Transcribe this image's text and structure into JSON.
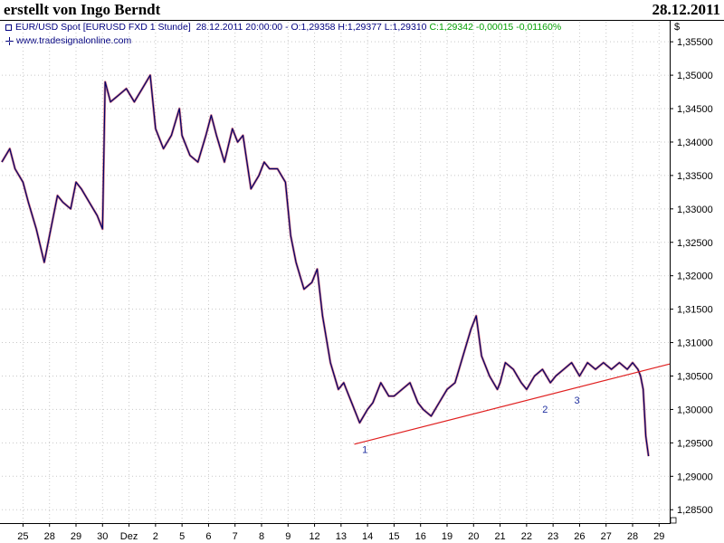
{
  "header": {
    "title": "erstellt von Ingo Berndt",
    "date": "28.12.2011"
  },
  "info": {
    "instrument": "EUR/USD Spot [EURUSD FXD  1 Stunde]",
    "timestamp": "28.12.2011 20:00:00",
    "ohlc": "- O:1,29358 H:1,29377 L:1,29310",
    "change": "C:1,29342 -0,00015 -0,01160%",
    "website": "www.tradesignalonline.com"
  },
  "chart_data": {
    "type": "line",
    "yunit": "$",
    "ylim": [
      1.283,
      1.358
    ],
    "ytick_labels": [
      "1,35500",
      "1,35000",
      "1,34500",
      "1,34000",
      "1,33500",
      "1,33000",
      "1,32500",
      "1,32000",
      "1,31500",
      "1,31000",
      "1,30500",
      "1,30000",
      "1,29500",
      "1,29000",
      "1,28500"
    ],
    "ytick_values": [
      1.355,
      1.35,
      1.345,
      1.34,
      1.335,
      1.33,
      1.325,
      1.32,
      1.315,
      1.31,
      1.305,
      1.3,
      1.295,
      1.29,
      1.285
    ],
    "xtick_labels": [
      "25",
      "28",
      "29",
      "30",
      "Dez",
      "2",
      "5",
      "6",
      "7",
      "8",
      "9",
      "12",
      "13",
      "14",
      "15",
      "16",
      "19",
      "20",
      "21",
      "22",
      "23",
      "26",
      "27",
      "28",
      "29"
    ],
    "xtick_positions": [
      0,
      1,
      2,
      3,
      4,
      5,
      6,
      7,
      8,
      9,
      10,
      11,
      12,
      13,
      14,
      15,
      16,
      17,
      18,
      19,
      20,
      21,
      22,
      23,
      24
    ],
    "xlim": [
      -0.8,
      24.4
    ],
    "grid": true,
    "series": [
      {
        "name": "EUR/USD",
        "color": "#000066",
        "x": [
          -0.8,
          -0.5,
          -0.3,
          0.0,
          0.2,
          0.5,
          0.8,
          1.0,
          1.3,
          1.5,
          1.8,
          2.0,
          2.2,
          2.5,
          2.8,
          3.0,
          3.1,
          3.3,
          3.6,
          3.9,
          4.2,
          4.5,
          4.8,
          5.0,
          5.3,
          5.6,
          5.9,
          6.0,
          6.3,
          6.6,
          6.9,
          7.1,
          7.3,
          7.6,
          7.9,
          8.1,
          8.3,
          8.6,
          8.9,
          9.1,
          9.3,
          9.6,
          9.9,
          10.1,
          10.3,
          10.6,
          10.9,
          11.1,
          11.3,
          11.6,
          11.9,
          12.1,
          12.2,
          12.4,
          12.7,
          13.0,
          13.2,
          13.5,
          13.8,
          14.0,
          14.3,
          14.6,
          14.9,
          15.1,
          15.4,
          15.7,
          16.0,
          16.3,
          16.6,
          16.9,
          17.1,
          17.3,
          17.6,
          17.9,
          18.0,
          18.2,
          18.5,
          18.8,
          19.0,
          19.3,
          19.6,
          19.9,
          20.1,
          20.4,
          20.7,
          21.0,
          21.3,
          21.6,
          21.9,
          22.2,
          22.5,
          22.8,
          23.0,
          23.2,
          23.3,
          23.4,
          23.5,
          23.6
        ],
        "y": [
          1.337,
          1.339,
          1.336,
          1.334,
          1.331,
          1.327,
          1.322,
          1.326,
          1.332,
          1.331,
          1.33,
          1.334,
          1.333,
          1.331,
          1.329,
          1.327,
          1.349,
          1.346,
          1.347,
          1.348,
          1.346,
          1.348,
          1.35,
          1.342,
          1.339,
          1.341,
          1.345,
          1.341,
          1.338,
          1.337,
          1.341,
          1.344,
          1.341,
          1.337,
          1.342,
          1.34,
          1.341,
          1.333,
          1.335,
          1.337,
          1.336,
          1.336,
          1.334,
          1.326,
          1.322,
          1.318,
          1.319,
          1.321,
          1.314,
          1.307,
          1.303,
          1.304,
          1.303,
          1.301,
          1.298,
          1.3,
          1.301,
          1.304,
          1.302,
          1.302,
          1.303,
          1.304,
          1.301,
          1.3,
          1.299,
          1.301,
          1.303,
          1.304,
          1.308,
          1.312,
          1.314,
          1.308,
          1.305,
          1.303,
          1.304,
          1.307,
          1.306,
          1.304,
          1.303,
          1.305,
          1.306,
          1.304,
          1.305,
          1.306,
          1.307,
          1.305,
          1.307,
          1.306,
          1.307,
          1.306,
          1.307,
          1.306,
          1.307,
          1.306,
          1.305,
          1.303,
          1.296,
          1.293
        ]
      }
    ],
    "trendline": {
      "color": "#e02020",
      "x": [
        12.5,
        24.4
      ],
      "y": [
        1.2948,
        1.3068
      ]
    },
    "wave_labels": [
      {
        "text": "1",
        "x": 12.9,
        "y": 1.2935
      },
      {
        "text": "2",
        "x": 19.7,
        "y": 1.2995
      },
      {
        "text": "3",
        "x": 20.9,
        "y": 1.3009
      }
    ]
  }
}
